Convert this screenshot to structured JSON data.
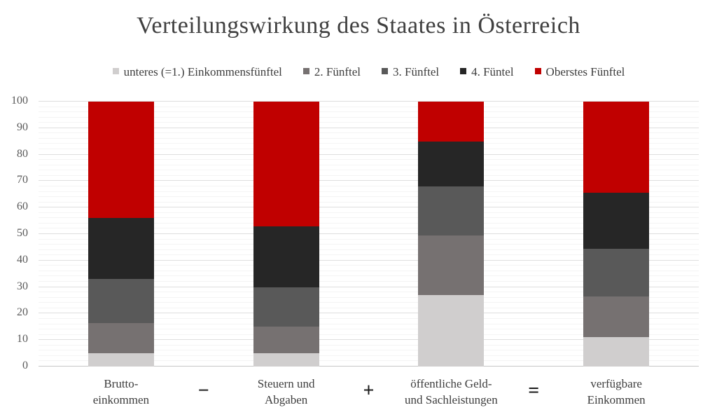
{
  "chart_data": {
    "type": "bar",
    "stacked": true,
    "title": "Verteilungswirkung des Staates in Österreich",
    "categories": [
      {
        "lines": [
          "Brutto-",
          "einkommen"
        ]
      },
      {
        "lines": [
          "Steuern und",
          "Abgaben"
        ]
      },
      {
        "lines": [
          "öffentliche Geld-",
          "und Sachleistungen"
        ]
      },
      {
        "lines": [
          "verfügbare",
          "Einkommen"
        ]
      }
    ],
    "operators_between_categories": [
      "−",
      "+",
      "="
    ],
    "series": [
      {
        "name": "unteres (=1.) Einkommensfünftel",
        "color": "#D0CECE",
        "values": [
          5,
          5,
          27,
          11
        ]
      },
      {
        "name": "2. Fünftel",
        "color": "#767171",
        "values": [
          11.5,
          10,
          22.5,
          15.5
        ]
      },
      {
        "name": "3. Fünftel",
        "color": "#595959",
        "values": [
          16.5,
          15,
          18.5,
          18
        ]
      },
      {
        "name": "4. Füntel",
        "color": "#262626",
        "values": [
          23,
          23,
          17,
          21
        ]
      },
      {
        "name": "Oberstes Fünftel",
        "color": "#C00000",
        "values": [
          44,
          47,
          15,
          34.5
        ]
      }
    ],
    "ylim": [
      0,
      100
    ],
    "y_ticks": [
      0,
      10,
      20,
      30,
      40,
      50,
      60,
      70,
      80,
      90,
      100
    ],
    "y_minor_step": 2,
    "grid": true,
    "legend_position": "top"
  },
  "colors": {
    "background": "#ffffff",
    "title_text": "#404040",
    "label_text": "#3d3d3d",
    "tick_text": "#595959",
    "grid_major": "#dedede",
    "grid_minor": "#f4f4f4",
    "axis_line": "#c6c6c6",
    "operator_text": "#1a1a1a"
  }
}
